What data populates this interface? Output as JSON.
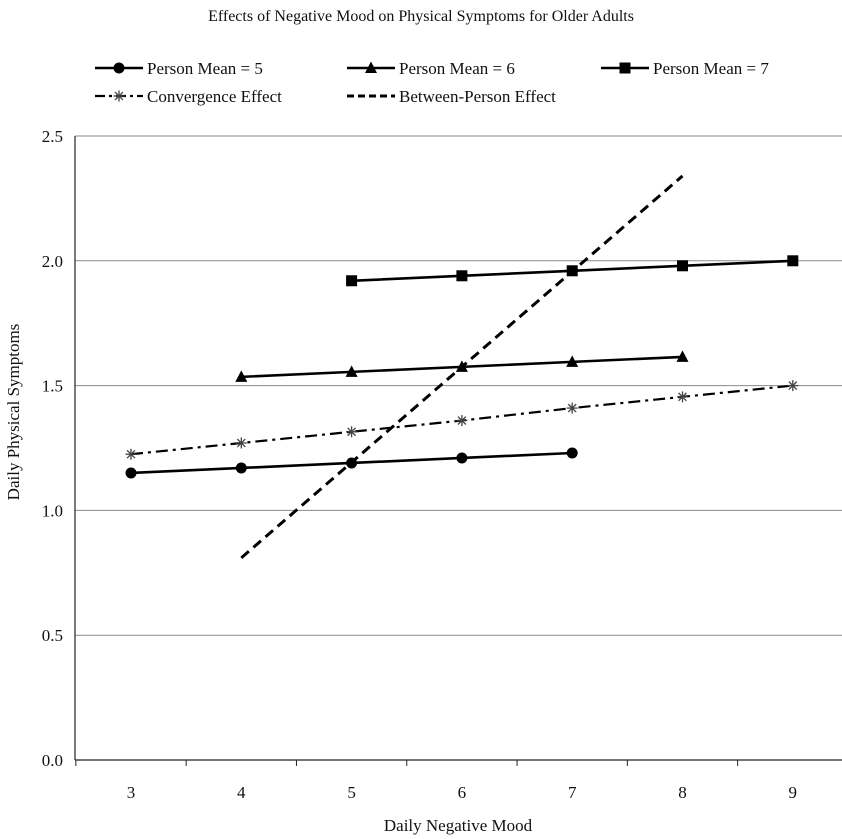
{
  "chart_data": {
    "type": "line",
    "title": "Effects of Negative Mood on Physical Symptoms for Older Adults",
    "xlabel": "Daily Negative Mood",
    "ylabel": "Daily Physical Symptoms",
    "xlim": [
      3,
      9
    ],
    "ylim": [
      0.0,
      2.5
    ],
    "x_ticks": [
      3,
      4,
      5,
      6,
      7,
      8,
      9
    ],
    "y_ticks": [
      0.0,
      0.5,
      1.0,
      1.5,
      2.0,
      2.5
    ],
    "y_tick_labels": [
      "0.0",
      "0.5",
      "1.0",
      "1.5",
      "2.0",
      "2.5"
    ],
    "grid": "horizontal",
    "legend_position": "top",
    "series": [
      {
        "name": "Person Mean = 5",
        "marker": "circle",
        "line": "solid",
        "points": [
          [
            3,
            1.15
          ],
          [
            4,
            1.17
          ],
          [
            5,
            1.19
          ],
          [
            6,
            1.21
          ],
          [
            7,
            1.23
          ]
        ]
      },
      {
        "name": "Person Mean = 6",
        "marker": "triangle",
        "line": "solid",
        "points": [
          [
            4,
            1.535
          ],
          [
            5,
            1.555
          ],
          [
            6,
            1.575
          ],
          [
            7,
            1.595
          ],
          [
            8,
            1.615
          ]
        ]
      },
      {
        "name": "Person Mean = 7",
        "marker": "square",
        "line": "solid",
        "points": [
          [
            5,
            1.92
          ],
          [
            6,
            1.94
          ],
          [
            7,
            1.96
          ],
          [
            8,
            1.98
          ],
          [
            9,
            2.0
          ]
        ]
      },
      {
        "name": "Convergence Effect",
        "marker": "asterisk",
        "line": "dashdot",
        "points": [
          [
            3,
            1.225
          ],
          [
            4,
            1.27
          ],
          [
            5,
            1.315
          ],
          [
            6,
            1.36
          ],
          [
            7,
            1.41
          ],
          [
            8,
            1.455
          ],
          [
            9,
            1.5
          ]
        ]
      },
      {
        "name": "Between-Person Effect",
        "marker": "none",
        "line": "dashed",
        "points": [
          [
            4,
            0.81
          ],
          [
            8,
            2.34
          ]
        ]
      }
    ]
  }
}
